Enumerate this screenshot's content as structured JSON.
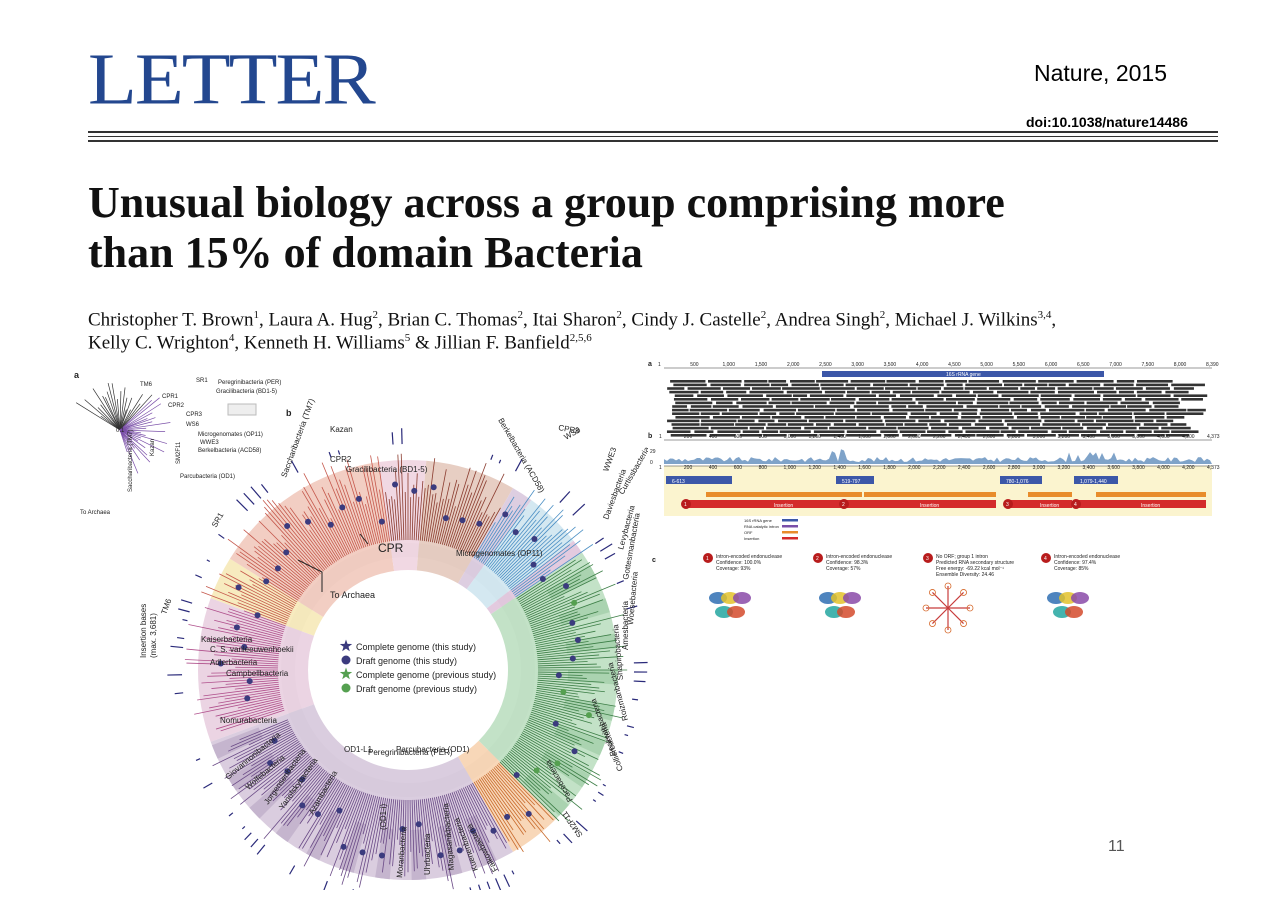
{
  "header": {
    "section_label": "LETTER",
    "journal_year": "Nature, 2015",
    "doi": "doi:10.1038/nature14486"
  },
  "article": {
    "title_line1": "Unusual biology across a group comprising more",
    "title_line2": "than 15% of domain Bacteria",
    "authors_line1": [
      {
        "name": "Christopher T. Brown",
        "aff": "1"
      },
      {
        "name": "Laura A. Hug",
        "aff": "2"
      },
      {
        "name": "Brian C. Thomas",
        "aff": "2"
      },
      {
        "name": "Itai Sharon",
        "aff": "2"
      },
      {
        "name": "Cindy J. Castelle",
        "aff": "2"
      },
      {
        "name": "Andrea Singh",
        "aff": "2"
      },
      {
        "name": "Michael J. Wilkins",
        "aff": "3,4"
      }
    ],
    "authors_line2": [
      {
        "name": "Kelly C. Wrighton",
        "aff": "4"
      },
      {
        "name": "Kenneth H. Williams",
        "aff": "5"
      },
      {
        "name": "Jillian F. Banfield",
        "aff": "2,5,6"
      }
    ],
    "sep": ", ",
    "and": " & "
  },
  "figure_left": {
    "panel_a": "a",
    "panel_b": "b",
    "inset_labels": [
      "TM6",
      "SR1",
      "Peregrinibacteria (PER)",
      "Gracilibacteria (BD1-5)",
      "CPR1",
      "CPR2",
      "CPR3",
      "WS6",
      "Microgenomates (OP11)",
      "WWE3",
      "Berkelbacteria (ACD58)",
      "SM2F11",
      "Parcubacteria (OD1)",
      "Kazan",
      "Saccharibacteria (TM7)",
      "To Archaea",
      "CPR",
      "0.1"
    ],
    "clade_labels": [
      "Peregrinibacteria (PER)",
      "Berkelbacteria (ACD58)",
      "CPR3",
      "WS6",
      "WWE3",
      "Curtissbacteria",
      "Daviesbacteria",
      "Levybacteria",
      "Gottesmanbacteria",
      "Woesebacteria",
      "Amesbacteria",
      "Shapirobacteria",
      "Roizmanbacteria",
      "Beckwithbacteria",
      "Collierbacteria",
      "Pacebacteria",
      "SM2F11",
      "Falkowbacteria",
      "Kuenenbacteria",
      "Magasanikbacteria",
      "Uhrbacteria",
      "Moranbacteria",
      "Kaiserbacteria",
      "C. S. vanleeuwenhoekii",
      "Adlerbacteria",
      "Campbellbacteria",
      "Nomurabacteria",
      "Giovannonibacteria",
      "Wolfebacteria",
      "Jorgensenbacteria",
      "Yanofskybacteria",
      "Azambacteria",
      "TM6",
      "SR1",
      "Saccharibacteria (TM7)",
      "Kazan",
      "CPR2",
      "Gracilibacteria (BD1-5)"
    ],
    "center_labels": {
      "cpr": "CPR",
      "to_archaea": "To Archaea",
      "microgenomates": "Microgenomates (OP11)",
      "parcubacteria": "Parcubacteria (OD1)",
      "od1_l1": "OD1-L1",
      "od1_i": "(OD1-i)",
      "insertion_bases": "Insertion bases",
      "insertion_max": "(max. 3,681)"
    },
    "legend": [
      {
        "label": "Complete genome (this study)",
        "symbol": "star",
        "color": "#3b3b7e"
      },
      {
        "label": "Draft genome (this study)",
        "symbol": "dot",
        "color": "#3b3b7e"
      },
      {
        "label": "Complete genome (previous study)",
        "symbol": "star",
        "color": "#55a050"
      },
      {
        "label": "Draft genome (previous study)",
        "symbol": "dot",
        "color": "#55a050"
      }
    ],
    "colors": {
      "tm6": "#e9cfe0",
      "sr1": "#f6e9b8",
      "saccharibacteria": "#f1c9bd",
      "peregrinibacteria": "#e4c9bd",
      "berkelbacteria": "#d9c9de",
      "cpr3": "#cfe6ef",
      "microgenomates": "#bcdfc1",
      "sm2f11": "#f7d3b0",
      "parcubacteria": "#d6c8dc"
    }
  },
  "figure_right": {
    "panel_a": "a",
    "panel_b": "b",
    "panel_c": "c",
    "scale_a": [
      "1",
      "500",
      "1,000",
      "1,500",
      "2,000",
      "2,500",
      "3,000",
      "3,500",
      "4,000",
      "4,500",
      "5,000",
      "5,500",
      "6,000",
      "6,500",
      "7,000",
      "7,500",
      "8,000",
      "8,390"
    ],
    "gene_label": "16S rRNA gene",
    "scale_b": [
      "1",
      "200",
      "400",
      "600",
      "800",
      "1,000",
      "1,200",
      "1,400",
      "1,600",
      "1,800",
      "2,000",
      "2,200",
      "2,400",
      "2,600",
      "2,800",
      "3,000",
      "3,200",
      "3,400",
      "3,600",
      "3,800",
      "4,000",
      "4,200",
      "4,373"
    ],
    "coverage_axis": [
      "29",
      "0"
    ],
    "segment_labels": [
      "6-613",
      "519-797",
      "780-1,076",
      "1,079-1,440"
    ],
    "insertion_label": "Insertion",
    "track_legend": [
      "16S rRNA gene",
      "RNA catalytic intron",
      "ORF",
      "Insertion"
    ],
    "insertion_numbers": [
      "1",
      "2",
      "3",
      "4"
    ],
    "annotations": [
      {
        "num": "1",
        "lines": [
          "Intron-encoded endonuclease",
          "Confidence: 100.0%",
          "Coverage: 93%"
        ]
      },
      {
        "num": "2",
        "lines": [
          "Intron-encoded endonuclease",
          "Confidence: 98.3%",
          "Coverage: 57%"
        ]
      },
      {
        "num": "3",
        "lines": [
          "No ORF; group 1 intron",
          "Predicted RNA secondary structure",
          "Free energy: -69.22 kcal mol⁻¹",
          "Ensemble Diversity: 24.46"
        ]
      },
      {
        "num": "4",
        "lines": [
          "Intron-encoded endonuclease",
          "Confidence: 97.4%",
          "Coverage: 85%"
        ]
      }
    ]
  },
  "page_number": "11"
}
